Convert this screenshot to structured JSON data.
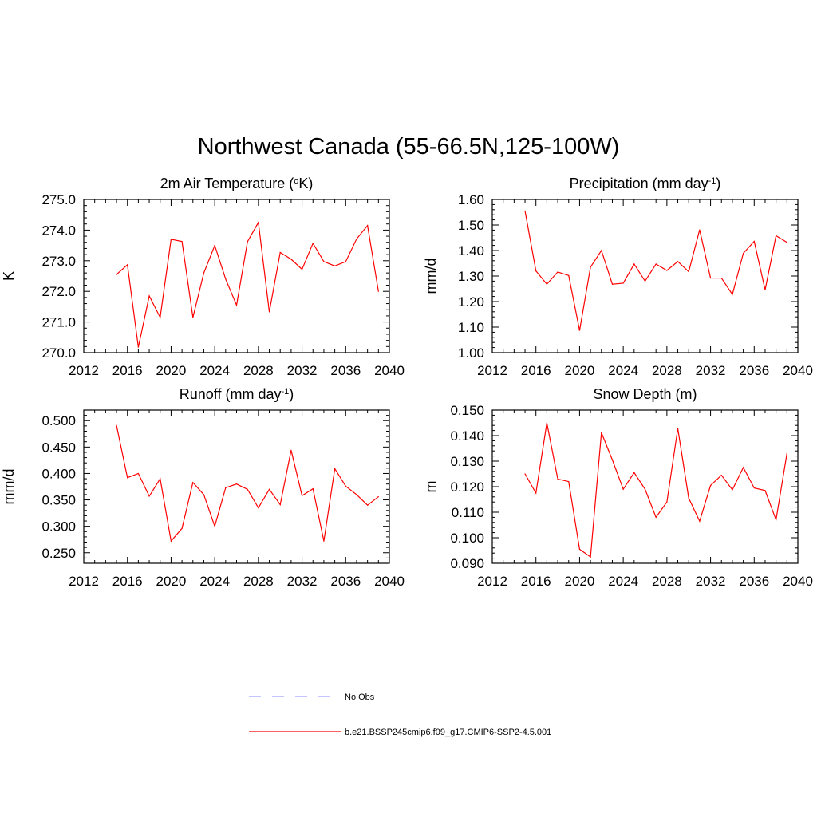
{
  "title": "Northwest Canada (55-66.5N,125-100W)",
  "colors": {
    "model": "#ff0000",
    "obs": "#a0a0ff",
    "axis": "#000000"
  },
  "legend": {
    "placement": "bottom-center",
    "entries": [
      {
        "name": "No Obs",
        "style": "dashed",
        "color": "#a0a0ff"
      },
      {
        "name": "b.e21.BSSP245cmip6.f09_g17.CMIP6-SSP2-4.5.001",
        "style": "solid",
        "color": "#ff0000"
      }
    ]
  },
  "chart_data": [
    {
      "type": "line",
      "title_main": "2m Air Temperature (",
      "title_sup_left": "o",
      "title_after": "K)",
      "title_sup_right": "",
      "title_end": "",
      "ylabel": "K",
      "xlim": [
        2012,
        2040
      ],
      "xticks": [
        "2012",
        "2016",
        "2020",
        "2024",
        "2028",
        "2032",
        "2036",
        "2040"
      ],
      "ylim": [
        270.0,
        275.0
      ],
      "yticks": [
        "270.0",
        "271.0",
        "272.0",
        "273.0",
        "274.0",
        "275.0"
      ],
      "x": [
        2015,
        2016,
        2017,
        2018,
        2019,
        2020,
        2021,
        2022,
        2023,
        2024,
        2025,
        2026,
        2027,
        2028,
        2029,
        2030,
        2031,
        2032,
        2033,
        2034,
        2035,
        2036,
        2037,
        2038,
        2039
      ],
      "series": [
        {
          "values": [
            272.55,
            272.87,
            270.18,
            271.85,
            271.15,
            273.7,
            273.63,
            271.15,
            272.6,
            273.5,
            272.4,
            271.55,
            273.62,
            274.25,
            271.33,
            273.27,
            273.05,
            272.72,
            273.57,
            272.97,
            272.83,
            272.97,
            273.71,
            274.15,
            272.0
          ]
        }
      ]
    },
    {
      "type": "line",
      "title_main": "Precipitation (mm day",
      "title_sup_left": "",
      "title_after": "",
      "title_sup_right": "-1",
      "title_end": ")",
      "ylabel": "mm/d",
      "xlim": [
        2012,
        2040
      ],
      "xticks": [
        "2012",
        "2016",
        "2020",
        "2024",
        "2028",
        "2032",
        "2036",
        "2040"
      ],
      "ylim": [
        1.0,
        1.6
      ],
      "yticks": [
        "1.00",
        "1.10",
        "1.20",
        "1.30",
        "1.40",
        "1.50",
        "1.60"
      ],
      "x": [
        2015,
        2016,
        2017,
        2018,
        2019,
        2020,
        2021,
        2022,
        2023,
        2024,
        2025,
        2026,
        2027,
        2028,
        2029,
        2030,
        2031,
        2032,
        2033,
        2034,
        2035,
        2036,
        2037,
        2038,
        2039
      ],
      "series": [
        {
          "values": [
            1.555,
            1.32,
            1.268,
            1.316,
            1.302,
            1.087,
            1.335,
            1.4,
            1.268,
            1.272,
            1.347,
            1.28,
            1.347,
            1.322,
            1.357,
            1.317,
            1.481,
            1.292,
            1.292,
            1.228,
            1.389,
            1.436,
            1.246,
            1.458,
            1.432
          ]
        }
      ]
    },
    {
      "type": "line",
      "title_main": "Runoff (mm day",
      "title_sup_left": "",
      "title_after": "",
      "title_sup_right": "-1",
      "title_end": ")",
      "ylabel": "mm/d",
      "xlim": [
        2012,
        2040
      ],
      "xticks": [
        "2012",
        "2016",
        "2020",
        "2024",
        "2028",
        "2032",
        "2036",
        "2040"
      ],
      "ylim": [
        0.23,
        0.52
      ],
      "yticks": [
        "0.250",
        "0.300",
        "0.350",
        "0.400",
        "0.450",
        "0.500"
      ],
      "ytick_values": [
        0.25,
        0.3,
        0.35,
        0.4,
        0.45,
        0.5
      ],
      "x": [
        2015,
        2016,
        2017,
        2018,
        2019,
        2020,
        2021,
        2022,
        2023,
        2024,
        2025,
        2026,
        2027,
        2028,
        2029,
        2030,
        2031,
        2032,
        2033,
        2034,
        2035,
        2036,
        2037,
        2038,
        2039
      ],
      "series": [
        {
          "values": [
            0.491,
            0.392,
            0.4,
            0.357,
            0.39,
            0.272,
            0.296,
            0.383,
            0.36,
            0.3,
            0.373,
            0.38,
            0.37,
            0.335,
            0.37,
            0.341,
            0.444,
            0.358,
            0.371,
            0.272,
            0.409,
            0.376,
            0.36,
            0.34,
            0.356
          ]
        }
      ]
    },
    {
      "type": "line",
      "title_main": "Snow Depth (m)",
      "title_sup_left": "",
      "title_after": "",
      "title_sup_right": "",
      "title_end": "",
      "ylabel": "m",
      "xlim": [
        2012,
        2040
      ],
      "xticks": [
        "2012",
        "2016",
        "2020",
        "2024",
        "2028",
        "2032",
        "2036",
        "2040"
      ],
      "ylim": [
        0.09,
        0.15
      ],
      "yticks": [
        "0.090",
        "0.100",
        "0.110",
        "0.120",
        "0.130",
        "0.140",
        "0.150"
      ],
      "x": [
        2015,
        2016,
        2017,
        2018,
        2019,
        2020,
        2021,
        2022,
        2023,
        2024,
        2025,
        2026,
        2027,
        2028,
        2029,
        2030,
        2031,
        2032,
        2033,
        2034,
        2035,
        2036,
        2037,
        2038,
        2039
      ],
      "series": [
        {
          "values": [
            0.125,
            0.1175,
            0.145,
            0.123,
            0.122,
            0.0955,
            0.0925,
            0.1412,
            0.1305,
            0.119,
            0.1255,
            0.119,
            0.108,
            0.114,
            0.1428,
            0.1155,
            0.1065,
            0.1205,
            0.1245,
            0.1188,
            0.1275,
            0.1195,
            0.1185,
            0.107,
            0.133
          ]
        }
      ]
    }
  ]
}
